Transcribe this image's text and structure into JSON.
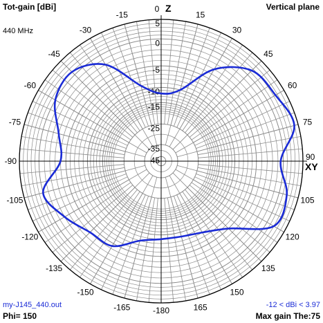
{
  "header": {
    "title": "Tot-gain [dBi]",
    "plane": "Vertical plane",
    "frequency": "440 MHz"
  },
  "footer": {
    "file": "my-J145_440.out",
    "phi": "Phi= 150",
    "range": "-12 < dBi < 3.97",
    "max_gain": "Max gain The:75"
  },
  "colors": {
    "trace": "#1a2bd6",
    "grid": "#8a8a8a",
    "axis": "#000000"
  },
  "chart_data": {
    "type": "line",
    "coordinate_system": "polar",
    "title": "Tot-gain [dBi]",
    "axis_labels": {
      "vertical": "Z",
      "horizontal": "XY"
    },
    "angle_tick_labels": [
      "0",
      "15",
      "30",
      "45",
      "60",
      "75",
      "90",
      "105",
      "120",
      "135",
      "150",
      "165",
      "-180",
      "-165",
      "-150",
      "-135",
      "-120",
      "-105",
      "-90",
      "-75",
      "-60",
      "-45",
      "-30",
      "-15"
    ],
    "angle_tick_values": [
      0,
      15,
      30,
      45,
      60,
      75,
      90,
      105,
      120,
      135,
      150,
      165,
      180,
      195,
      210,
      225,
      240,
      255,
      270,
      285,
      300,
      315,
      330,
      345
    ],
    "radial_tick_labels": [
      "5",
      "0",
      "-5",
      "-10",
      "-15",
      "-25",
      "-35",
      "-45"
    ],
    "radial_tick_values": [
      5,
      0,
      -5,
      -10,
      -15,
      -25,
      -35,
      -45
    ],
    "grid": true,
    "series": [
      {
        "theta": [
          0,
          15,
          30,
          45,
          60,
          75,
          90,
          105,
          120,
          135,
          150,
          165,
          180,
          195,
          210,
          225,
          240,
          255,
          270,
          285,
          300,
          315,
          330,
          345
        ],
        "r": [
          -12,
          -10,
          -3,
          1.5,
          2.5,
          4,
          -0.5,
          2,
          2,
          -5,
          -8,
          -9,
          -9,
          -8,
          -4.5,
          -4,
          -2,
          0,
          -4,
          -3,
          0,
          1,
          -2,
          -9
        ]
      }
    ]
  }
}
